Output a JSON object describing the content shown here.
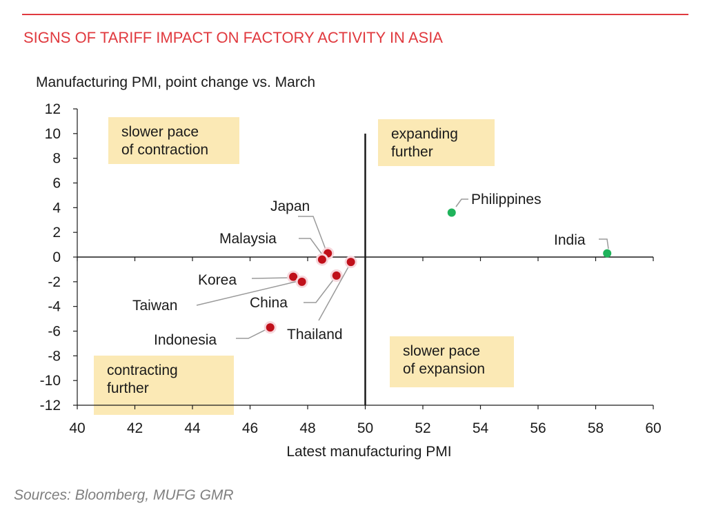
{
  "header": {
    "title": "SIGNS OF TARIFF IMPACT ON FACTORY ACTIVITY IN ASIA"
  },
  "footer": {
    "source": "Sources:  Bloomberg, MUFG GMR"
  },
  "colors": {
    "accent": "#e0393e",
    "quadrant_box": "#fbe9b5",
    "contracting_point": "#c0101a",
    "expanding_point": "#1fb35b"
  },
  "chart_data": {
    "type": "scatter",
    "title": "SIGNS OF TARIFF IMPACT ON FACTORY ACTIVITY IN ASIA",
    "ylabel": "Manufacturing PMI, point change vs. March",
    "xlabel": "Latest manufacturing PMI",
    "xlim": [
      40,
      60
    ],
    "ylim": [
      -12,
      12
    ],
    "x_ticks": [
      "40",
      "42",
      "44",
      "46",
      "48",
      "50",
      "52",
      "54",
      "56",
      "58",
      "60"
    ],
    "y_ticks": [
      "12",
      "10",
      "8",
      "6",
      "4",
      "2",
      "0",
      "-2",
      "-4",
      "-6",
      "-8",
      "-10",
      "-12"
    ],
    "reference_lines": {
      "x": 50,
      "y": 0
    },
    "grid": false,
    "quadrant_labels": [
      {
        "line1": "slower pace",
        "line2": "of contraction",
        "position": "top-left"
      },
      {
        "line1": "expanding",
        "line2": "further",
        "position": "top-right"
      },
      {
        "line1": "contracting",
        "line2": "further",
        "position": "bottom-left"
      },
      {
        "line1": "slower pace",
        "line2": "of expansion",
        "position": "bottom-right"
      }
    ],
    "points": [
      {
        "name": "Japan",
        "x": 48.7,
        "y": 0.3,
        "group": "contracting"
      },
      {
        "name": "Malaysia",
        "x": 48.5,
        "y": -0.2,
        "group": "contracting"
      },
      {
        "name": "Korea",
        "x": 47.5,
        "y": -1.6,
        "group": "contracting"
      },
      {
        "name": "Taiwan",
        "x": 47.8,
        "y": -2.0,
        "group": "contracting"
      },
      {
        "name": "China",
        "x": 49.0,
        "y": -1.5,
        "group": "contracting"
      },
      {
        "name": "Thailand",
        "x": 49.5,
        "y": -0.4,
        "group": "contracting"
      },
      {
        "name": "Indonesia",
        "x": 46.7,
        "y": -5.7,
        "group": "contracting"
      },
      {
        "name": "Philippines",
        "x": 53.0,
        "y": 3.6,
        "group": "expanding"
      },
      {
        "name": "India",
        "x": 58.4,
        "y": 0.3,
        "group": "expanding"
      }
    ]
  }
}
